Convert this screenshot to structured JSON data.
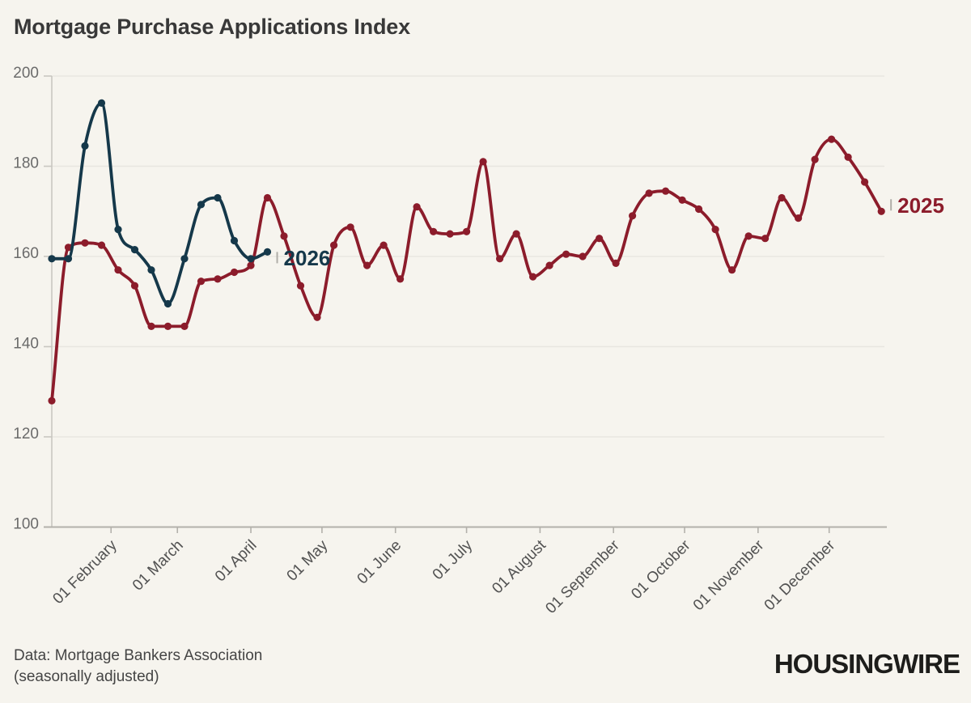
{
  "page": {
    "title": "Mortgage Purchase Applications Index",
    "source_line_1": "Data: Mortgage Bankers Association",
    "source_line_2": "(seasonally adjusted)",
    "logo_text": "HOUSINGWIRE"
  },
  "colors": {
    "background": "#f6f4ee",
    "red_2025": "#8c1c2b",
    "navy_2026": "#15384a",
    "grid": "#e8e6e0",
    "axis": "#b3b1ab",
    "tick_stub": "#c9c7c1",
    "y_label": "#6b6b6b",
    "x_label": "#525252",
    "end_tick": "#b0aeа8",
    "end_tick_safe": "#b0aea8"
  },
  "chart_data": {
    "type": "line",
    "title": "Mortgage Purchase Applications Index",
    "x_cadence": "weekly",
    "x_axis": {
      "tick_labels": [
        "01 February",
        "01 March",
        "01 April",
        "01 May",
        "01 June",
        "01 July",
        "01 August",
        "01 September",
        "01 October",
        "01 November",
        "01 December"
      ],
      "tick_days_of_year": [
        31,
        59,
        90,
        120,
        151,
        181,
        212,
        243,
        273,
        304,
        334
      ]
    },
    "y_axis": {
      "min": 100,
      "max": 200,
      "ticks": [
        100,
        120,
        140,
        160,
        180,
        200
      ]
    },
    "grid": "horizontal",
    "legend": "inline-end-labels",
    "series": [
      {
        "name": "2025",
        "label": "2025",
        "color_key": "red_2025",
        "first_point_day_of_year": 6,
        "values": [
          128,
          162,
          163,
          162.5,
          157,
          153.5,
          144.5,
          144.5,
          144.5,
          154.5,
          155,
          156.5,
          158,
          173,
          164.5,
          153.5,
          146.5,
          162.5,
          166.5,
          158,
          162.5,
          155,
          171,
          165.5,
          165,
          165.5,
          181,
          159.5,
          165,
          155.5,
          158,
          160.5,
          160,
          164,
          158.5,
          169,
          174,
          174.5,
          172.5,
          170.5,
          166,
          157,
          164.5,
          164,
          173,
          168.5,
          181.5,
          186,
          182,
          176.5,
          170
        ]
      },
      {
        "name": "2026",
        "label": "2026",
        "color_key": "navy_2026",
        "first_point_day_of_year": 6,
        "values": [
          159.5,
          159.5,
          184.5,
          194,
          166,
          161.5,
          157,
          149.5,
          159.5,
          171.5,
          173,
          163.5,
          159.5,
          161
        ]
      }
    ]
  }
}
